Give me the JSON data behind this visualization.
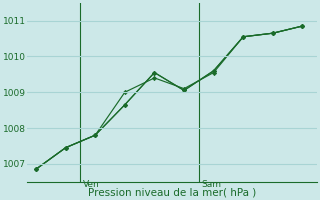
{
  "bg_color": "#cce8e8",
  "grid_color": "#a8d4d4",
  "line_color": "#1a6b2a",
  "ylim": [
    1006.5,
    1011.5
  ],
  "yticks": [
    1007,
    1008,
    1009,
    1010,
    1011
  ],
  "xlabel": "Pression niveau de la mer( hPa )",
  "series1_x": [
    0,
    1,
    2,
    3,
    4,
    5,
    6,
    7,
    8,
    9
  ],
  "series1_y": [
    1006.85,
    1007.45,
    1007.8,
    1008.65,
    1009.55,
    1009.05,
    1009.6,
    1010.55,
    1010.65,
    1010.85
  ],
  "series2_x": [
    0,
    1,
    2,
    3,
    4,
    5,
    6,
    7,
    8,
    9
  ],
  "series2_y": [
    1006.85,
    1007.45,
    1007.8,
    1008.65,
    1009.55,
    1009.05,
    1009.6,
    1010.55,
    1010.65,
    1010.85
  ],
  "series3_x": [
    0,
    1,
    2,
    3,
    4,
    5,
    6,
    7,
    8,
    9
  ],
  "series3_y": [
    1006.85,
    1007.45,
    1007.8,
    1009.0,
    1009.4,
    1009.1,
    1009.55,
    1010.55,
    1010.65,
    1010.85
  ],
  "ven_x": 1.5,
  "sam_x": 5.5,
  "xlim": [
    -0.3,
    9.5
  ],
  "num_points": 10
}
